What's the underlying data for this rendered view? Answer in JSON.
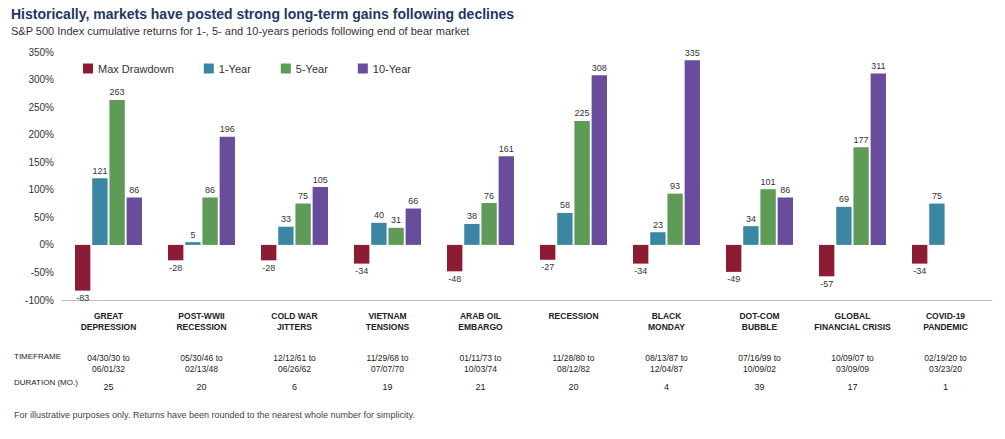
{
  "chart_data": {
    "type": "bar",
    "title": "Historically, markets have posted strong long-term gains following declines",
    "subtitle": "S&P 500 Index cumulative returns for 1-, 5- and 10-years periods following end of bear market",
    "categories": [
      "GREAT\nDEPRESSION",
      "POST-WWII\nRECESSION",
      "COLD WAR\nJITTERS",
      "VIETNAM\nTENSIONS",
      "ARAB OIL\nEMBARGO",
      "RECESSION",
      "BLACK\nMONDAY",
      "DOT-COM\nBUBBLE",
      "GLOBAL\nFINANCIAL CRISIS",
      "COVID-19\nPANDEMIC"
    ],
    "series": [
      {
        "name": "Max Drawdown",
        "color": "#8c1c33",
        "values": [
          -83,
          -28,
          -28,
          -34,
          -48,
          -27,
          -34,
          -49,
          -57,
          -34
        ]
      },
      {
        "name": "1-Year",
        "color": "#3a86a3",
        "values": [
          121,
          5,
          33,
          40,
          38,
          58,
          23,
          34,
          69,
          75
        ]
      },
      {
        "name": "5-Year",
        "color": "#5e9b57",
        "values": [
          263,
          86,
          75,
          31,
          76,
          225,
          93,
          101,
          177,
          null
        ]
      },
      {
        "name": "10-Year",
        "color": "#6a4c9c",
        "values": [
          86,
          196,
          105,
          66,
          161,
          308,
          335,
          86,
          311,
          null
        ]
      }
    ],
    "timeframe_label": "TIMEFRAME",
    "timeframes": [
      "04/30/30 to\n06/01/32",
      "05/30/46 to\n02/13/48",
      "12/12/61 to\n06/26/62",
      "11/29/68 to\n07/07/70",
      "01/11/73 to\n10/03/74",
      "11/28/80 to\n08/12/82",
      "08/13/87 to\n12/04/87",
      "07/16/99 to\n10/09/02",
      "10/09/07 to\n03/09/09",
      "02/19/20 to\n03/23/20"
    ],
    "duration_label": "DURATION (MO.)",
    "durations": [
      25,
      20,
      6,
      19,
      21,
      20,
      4,
      39,
      17,
      1
    ],
    "note": "For illustrative purposes only. Returns have been rounded to the nearest whole number for simplicity.",
    "ylim": [
      -100,
      350
    ],
    "yticks": [
      {
        "value": -100,
        "label": "-100%"
      },
      {
        "value": -50,
        "label": "-50%"
      },
      {
        "value": 0,
        "label": "0%"
      },
      {
        "value": 50,
        "label": "50%"
      },
      {
        "value": 100,
        "label": "100%"
      },
      {
        "value": 150,
        "label": "150%"
      },
      {
        "value": 200,
        "label": "200%"
      },
      {
        "value": 250,
        "label": "250%"
      },
      {
        "value": 300,
        "label": "300%"
      },
      {
        "value": 350,
        "label": "350%"
      }
    ],
    "grid": false,
    "legend": "top-left",
    "data_labels": true
  }
}
